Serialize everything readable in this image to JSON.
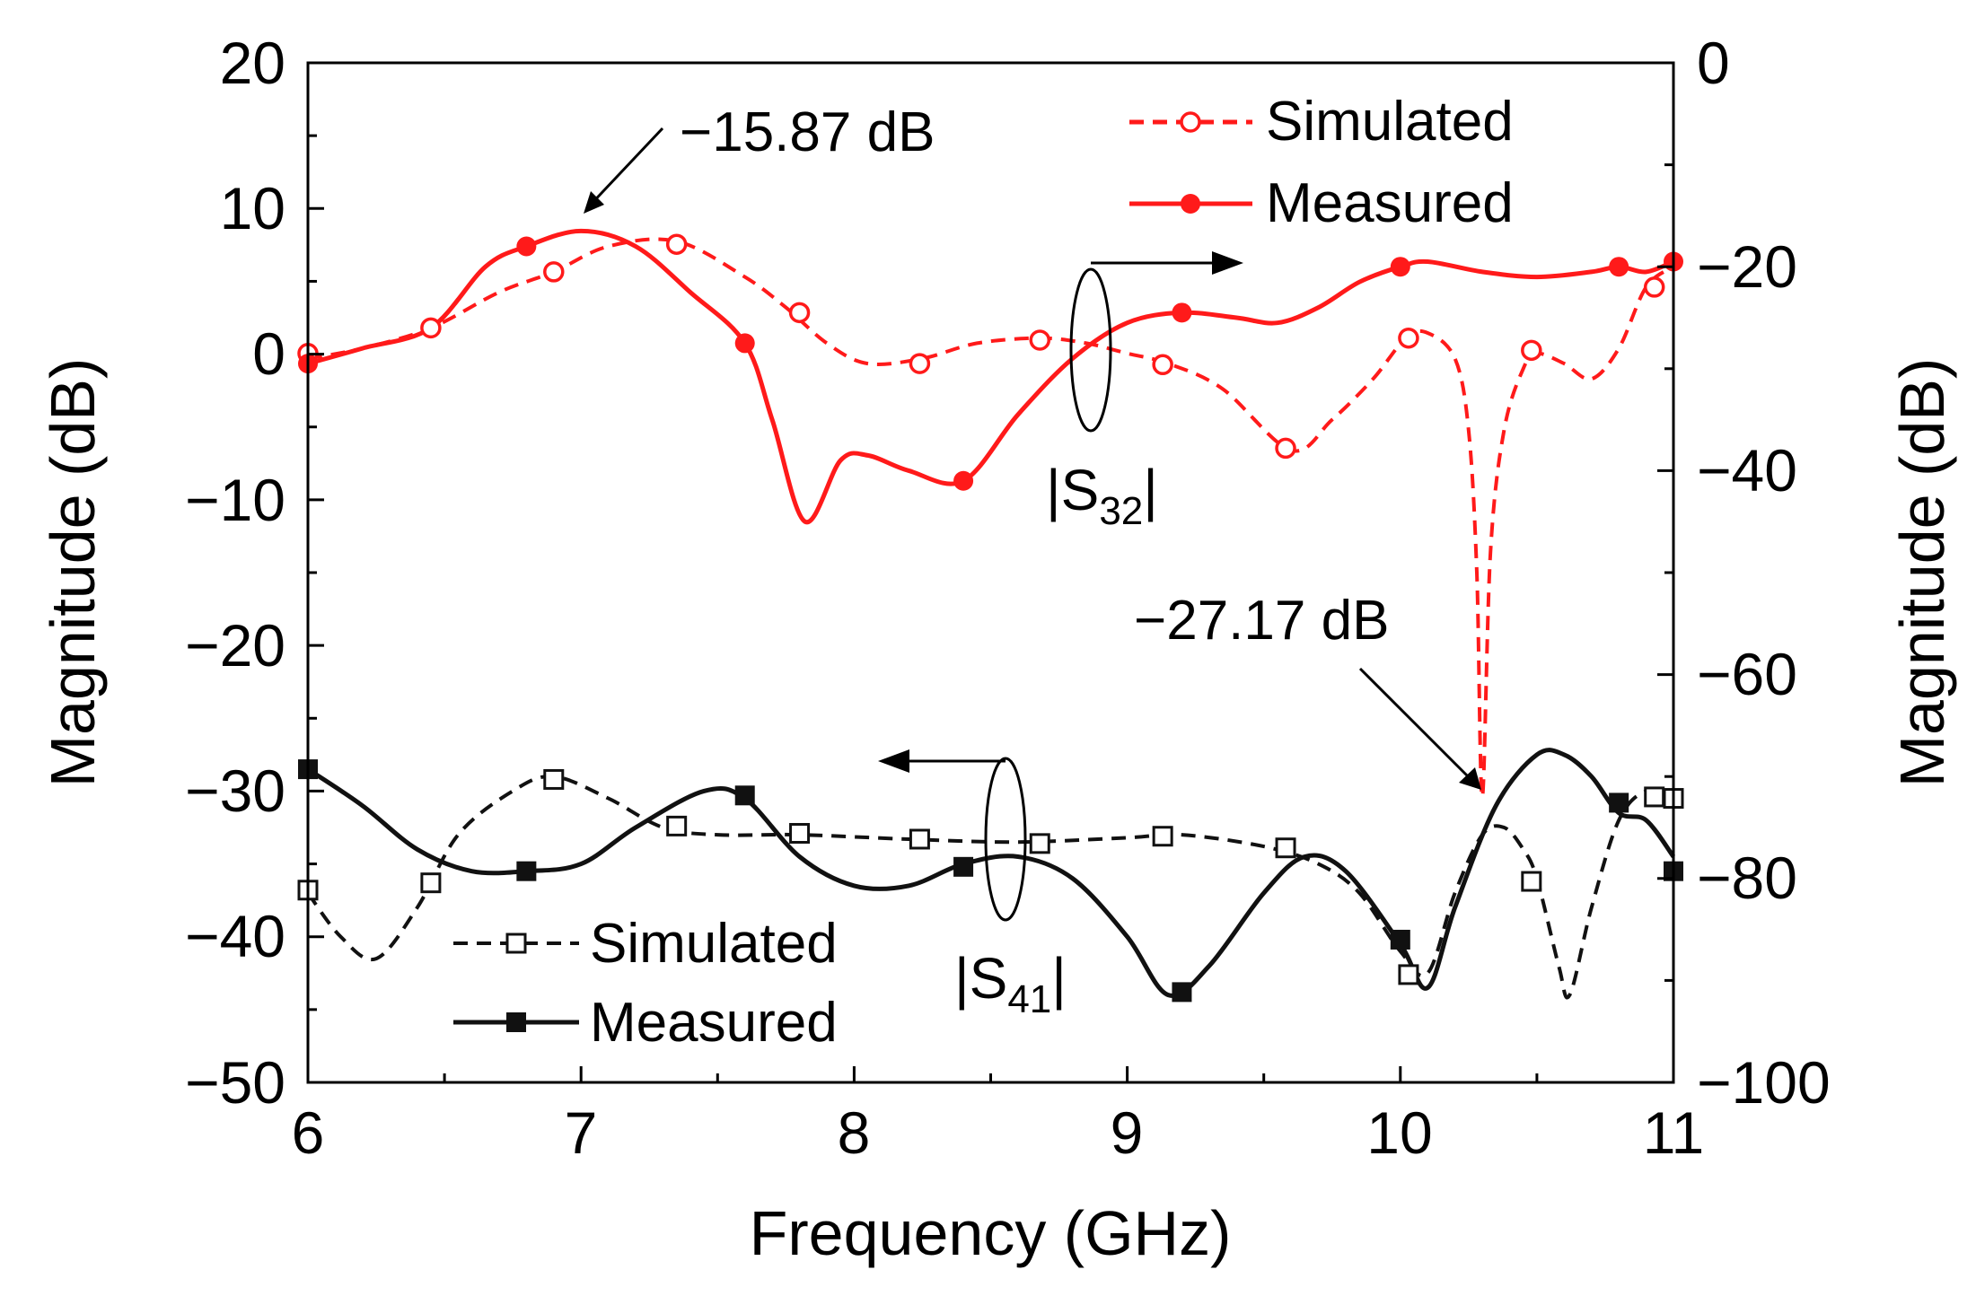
{
  "chart_data": {
    "type": "line",
    "xlabel": "Frequency (GHz)",
    "ylabel_left": "Magnitude (dB)",
    "ylabel_right": "Magnitude (dB)",
    "xlim": [
      6,
      11
    ],
    "ylim_left": [
      -50,
      20
    ],
    "ylim_right": [
      -100,
      0
    ],
    "x_ticks": [
      "6",
      "7",
      "8",
      "9",
      "10",
      "11"
    ],
    "y_left_ticks": [
      "20",
      "10",
      "0",
      "−10",
      "−20",
      "−30",
      "−40",
      "−50"
    ],
    "y_right_ticks": [
      "0",
      "−20",
      "−40",
      "−60",
      "−80",
      "−100"
    ],
    "colors": {
      "s32": "#ff1a1a",
      "s41": "#111111",
      "annotation": "#000000"
    },
    "series": [
      {
        "name": "S32 Simulated",
        "group": "s32",
        "axis": "right",
        "style": "dashed",
        "marker": "open-circle",
        "x": [
          6.0,
          6.2,
          6.45,
          6.7,
          6.9,
          7.1,
          7.35,
          7.6,
          7.75,
          7.9,
          8.05,
          8.25,
          8.45,
          8.68,
          8.85,
          9.0,
          9.15,
          9.35,
          9.6,
          9.75,
          9.9,
          10.02,
          10.1,
          10.2,
          10.25,
          10.28,
          10.3,
          10.33,
          10.38,
          10.45,
          10.5,
          10.6,
          10.7,
          10.8,
          10.9,
          11.0
        ],
        "y": [
          -29,
          -28,
          -26,
          -22.5,
          -20.5,
          -18,
          -17.5,
          -21,
          -24,
          -27.5,
          -29.5,
          -29,
          -27.5,
          -27,
          -27.5,
          -28.5,
          -29.5,
          -32,
          -38,
          -35,
          -31,
          -27,
          -26.5,
          -29,
          -36,
          -50,
          -72,
          -48,
          -36,
          -30,
          -28.5,
          -29.5,
          -31,
          -28,
          -22,
          -20
        ],
        "marker_x": [
          6.0,
          6.45,
          6.9,
          7.35,
          7.8,
          8.24,
          8.68,
          9.13,
          9.58,
          10.03,
          10.48,
          10.93
        ],
        "marker_y": [
          -28.5,
          -26,
          -20.5,
          -17.8,
          -24.5,
          -29.5,
          -27.2,
          -29.6,
          -37.8,
          -27,
          -28.2,
          -22
        ]
      },
      {
        "name": "S32 Measured",
        "group": "s32",
        "axis": "right",
        "style": "solid",
        "marker": "filled-circle",
        "x": [
          6.0,
          6.2,
          6.45,
          6.65,
          6.8,
          7.0,
          7.2,
          7.4,
          7.6,
          7.7,
          7.82,
          7.95,
          8.05,
          8.2,
          8.4,
          8.6,
          8.8,
          9.0,
          9.2,
          9.4,
          9.55,
          9.7,
          9.85,
          10.0,
          10.1,
          10.3,
          10.5,
          10.7,
          10.8,
          10.9,
          11.0
        ],
        "y": [
          -29.5,
          -28,
          -26,
          -20,
          -18,
          -16.5,
          -18,
          -22.5,
          -27.5,
          -35,
          -45,
          -39,
          -38.5,
          -40,
          -41,
          -34.5,
          -29,
          -25.5,
          -24.5,
          -25,
          -25.5,
          -24,
          -21.5,
          -20,
          -19.5,
          -20.5,
          -21,
          -20.5,
          -20,
          -20.5,
          -19.5
        ],
        "marker_x": [
          6.0,
          6.8,
          7.6,
          8.4,
          9.2,
          10.0,
          10.8,
          11.0
        ],
        "marker_y": [
          -29.5,
          -18,
          -27.5,
          -41,
          -24.5,
          -20,
          -20,
          -19.5
        ]
      },
      {
        "name": "S41 Simulated",
        "group": "s41",
        "axis": "left",
        "style": "dashed",
        "marker": "open-square",
        "x": [
          6.0,
          6.12,
          6.25,
          6.4,
          6.55,
          6.75,
          6.9,
          7.1,
          7.3,
          7.5,
          7.8,
          8.2,
          8.6,
          9.0,
          9.2,
          9.5,
          9.7,
          9.85,
          10.0,
          10.1,
          10.2,
          10.3,
          10.38,
          10.45,
          10.5,
          10.58,
          10.62,
          10.7,
          10.8,
          10.9,
          11.0
        ],
        "y": [
          -37,
          -40,
          -41.5,
          -38,
          -33,
          -30,
          -29,
          -30.5,
          -32.5,
          -33,
          -33,
          -33.3,
          -33.5,
          -33.2,
          -33,
          -33.8,
          -35,
          -37,
          -41,
          -42.5,
          -37,
          -33,
          -32.5,
          -34,
          -36,
          -42,
          -44,
          -38,
          -32,
          -30,
          -30.5
        ],
        "marker_x": [
          6.0,
          6.45,
          6.9,
          7.35,
          7.8,
          8.24,
          8.68,
          9.13,
          9.58,
          10.03,
          10.48,
          10.93,
          11.0
        ],
        "marker_y": [
          -36.8,
          -36.3,
          -29.2,
          -32.4,
          -32.9,
          -33.3,
          -33.6,
          -33.1,
          -33.9,
          -42.6,
          -36.2,
          -30.4,
          -30.5
        ]
      },
      {
        "name": "S41 Measured",
        "group": "s41",
        "axis": "left",
        "style": "solid",
        "marker": "filled-square",
        "x": [
          6.0,
          6.2,
          6.4,
          6.6,
          6.8,
          7.0,
          7.2,
          7.45,
          7.6,
          7.8,
          8.0,
          8.2,
          8.4,
          8.6,
          8.8,
          9.0,
          9.15,
          9.3,
          9.5,
          9.65,
          9.8,
          10.0,
          10.1,
          10.2,
          10.35,
          10.5,
          10.6,
          10.7,
          10.8,
          10.9,
          11.0
        ],
        "y": [
          -28.5,
          -31,
          -34,
          -35.5,
          -35.5,
          -35,
          -32.5,
          -30,
          -30.5,
          -34.5,
          -36.5,
          -36.5,
          -35,
          -34.5,
          -36,
          -40,
          -44,
          -42,
          -37,
          -34.5,
          -35.5,
          -40.5,
          -43.5,
          -38,
          -31,
          -27.5,
          -27.5,
          -29,
          -31.5,
          -32,
          -34.5
        ],
        "marker_x": [
          6.0,
          6.8,
          7.6,
          8.4,
          9.2,
          10.0,
          10.8,
          11.0
        ],
        "marker_y": [
          -28.5,
          -35.5,
          -30.3,
          -35.2,
          -43.8,
          -40.2,
          -30.8,
          -35.5
        ]
      }
    ],
    "legend_top": {
      "simulated": "Simulated",
      "measured": "Measured",
      "placement": "top-right"
    },
    "legend_bottom": {
      "simulated": "Simulated",
      "measured": "Measured",
      "placement": "bottom-left"
    },
    "annotations": {
      "peak_label": "−15.87 dB",
      "dip_label": "−27.17 dB",
      "s32": {
        "prefix": "|S",
        "sub": "32",
        "suffix": "|"
      },
      "s41": {
        "prefix": "|S",
        "sub": "41",
        "suffix": "|"
      }
    }
  }
}
